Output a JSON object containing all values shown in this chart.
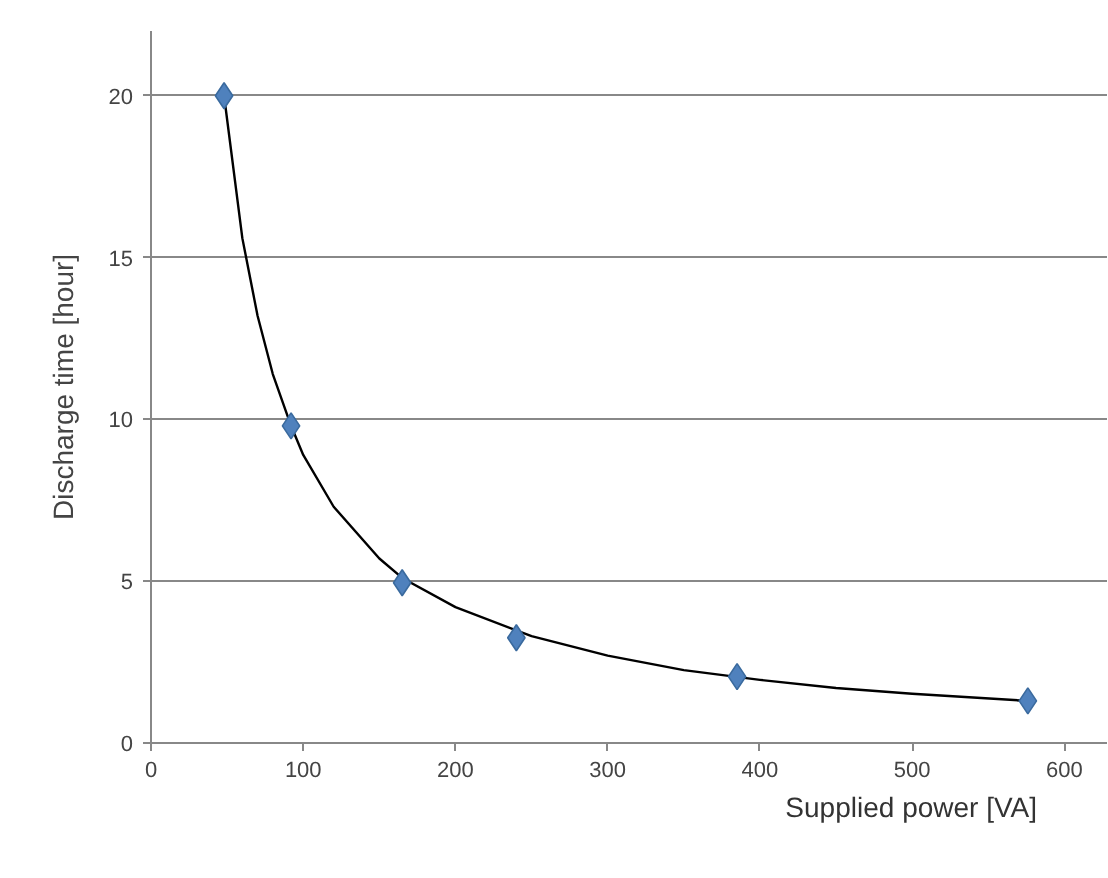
{
  "chart_data": {
    "type": "scatter",
    "xlabel": "Supplied power [VA]",
    "ylabel": "Discharge time [hour]",
    "xlim": [
      0,
      628
    ],
    "ylim": [
      0,
      22
    ],
    "xticks": [
      0,
      100,
      200,
      300,
      400,
      500,
      600
    ],
    "yticks": [
      0,
      5,
      10,
      15,
      20
    ],
    "grid": "y",
    "marker": "diamond",
    "series": [
      {
        "color": "#4f81bd",
        "x": [
          48,
          92,
          165,
          240,
          385,
          576
        ],
        "values": [
          20,
          9.8,
          4.95,
          3.25,
          2.05,
          1.3
        ]
      },
      {
        "type": "line",
        "color": "#000000",
        "line_style": "solid",
        "marker": "none",
        "x": [
          48,
          60,
          70,
          80,
          92,
          100,
          120,
          150,
          165,
          200,
          250,
          300,
          350,
          400,
          450,
          500,
          576
        ],
        "values": [
          20,
          15.6,
          13.2,
          11.4,
          9.8,
          8.9,
          7.3,
          5.7,
          5.1,
          4.2,
          3.3,
          2.7,
          2.25,
          1.95,
          1.7,
          1.52,
          1.3
        ]
      }
    ]
  }
}
